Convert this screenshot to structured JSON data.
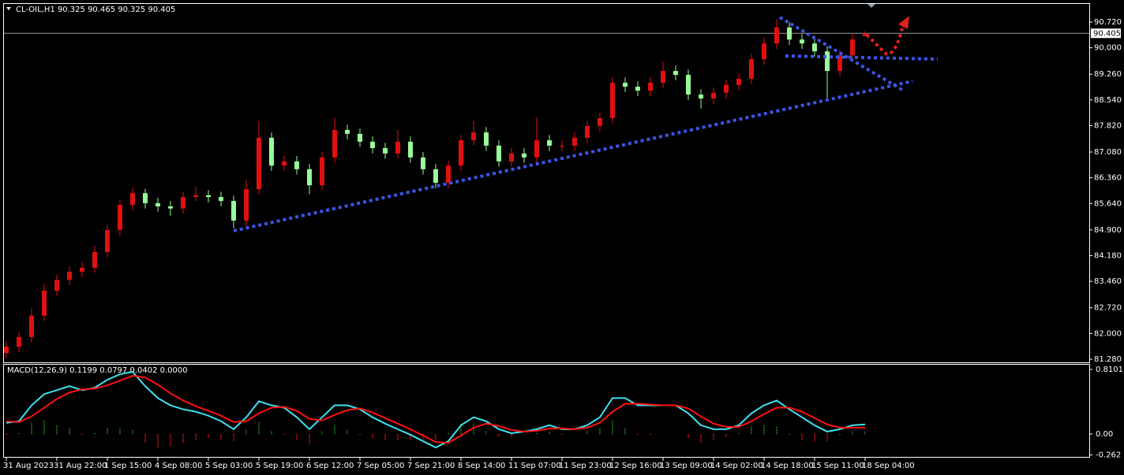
{
  "chart_data": [
    {
      "type": "candlestick",
      "title": "CL-OIL,H1  90.325 90.465 90.325 90.405",
      "up_color": "#e01010",
      "down_color": "#98fb98",
      "open": [
        81.45,
        81.63,
        81.9,
        82.5,
        83.2,
        83.5,
        83.73,
        83.84,
        84.28,
        84.9,
        85.6,
        85.93,
        85.65,
        85.56,
        85.5,
        85.82,
        85.87,
        85.82,
        85.71,
        85.16,
        86.04,
        87.48,
        86.7,
        86.82,
        86.6,
        86.15,
        86.93,
        87.7,
        87.59,
        87.37,
        87.19,
        87.04,
        87.37,
        86.93,
        86.6,
        86.22,
        86.7,
        87.41,
        87.63,
        87.26,
        86.82,
        87.04,
        86.93,
        87.41,
        87.26,
        87.26,
        87.48,
        87.81,
        88.03,
        89.02,
        88.91,
        88.8,
        89.02,
        89.35,
        89.24,
        88.69,
        88.58,
        88.74,
        88.96,
        89.13,
        89.68,
        90.12,
        90.57,
        90.23,
        90.12,
        89.9,
        89.35,
        89.79,
        90.325
      ],
      "high": [
        81.78,
        82.05,
        82.7,
        83.4,
        83.65,
        83.88,
        83.99,
        84.45,
        85.05,
        85.75,
        86.08,
        86.05,
        85.8,
        85.71,
        85.97,
        86.1,
        86.02,
        85.97,
        85.86,
        86.3,
        87.95,
        87.63,
        86.97,
        86.97,
        86.75,
        87.08,
        88.05,
        87.85,
        87.74,
        87.52,
        87.34,
        87.7,
        87.52,
        87.08,
        86.75,
        86.85,
        87.56,
        87.95,
        87.78,
        87.41,
        87.19,
        87.19,
        88.05,
        87.56,
        87.41,
        87.63,
        87.96,
        88.18,
        89.17,
        89.17,
        89.06,
        89.17,
        89.6,
        89.5,
        89.39,
        88.84,
        88.89,
        89.11,
        89.28,
        89.83,
        90.27,
        90.8,
        90.72,
        90.38,
        90.27,
        90.05,
        89.94,
        90.38,
        90.465
      ],
      "low": [
        81.3,
        81.48,
        81.75,
        82.35,
        83.05,
        83.35,
        83.58,
        83.7,
        84.13,
        84.75,
        85.45,
        85.5,
        85.41,
        85.3,
        85.35,
        85.7,
        85.67,
        85.56,
        84.95,
        85.0,
        85.9,
        86.55,
        86.55,
        86.45,
        85.9,
        86.0,
        86.78,
        87.44,
        87.22,
        87.04,
        86.89,
        86.89,
        86.78,
        86.45,
        86.07,
        86.07,
        86.55,
        87.26,
        87.11,
        86.67,
        86.67,
        86.78,
        86.78,
        87.11,
        87.11,
        87.11,
        87.33,
        87.66,
        87.88,
        88.76,
        88.65,
        88.65,
        88.87,
        89.09,
        88.54,
        88.3,
        88.43,
        88.59,
        88.81,
        88.98,
        89.53,
        89.97,
        90.08,
        89.97,
        89.75,
        88.6,
        89.2,
        89.64,
        90.325
      ],
      "close": [
        81.63,
        81.9,
        82.5,
        83.2,
        83.5,
        83.73,
        83.84,
        84.28,
        84.9,
        85.6,
        85.93,
        85.65,
        85.56,
        85.5,
        85.82,
        85.87,
        85.82,
        85.71,
        85.16,
        86.04,
        87.48,
        86.7,
        86.82,
        86.6,
        86.15,
        86.93,
        87.7,
        87.59,
        87.37,
        87.19,
        87.04,
        87.37,
        86.93,
        86.6,
        86.22,
        86.7,
        87.41,
        87.63,
        87.26,
        86.82,
        87.04,
        86.93,
        87.41,
        87.26,
        87.26,
        87.48,
        87.81,
        88.03,
        89.02,
        88.91,
        88.8,
        89.02,
        89.35,
        89.24,
        88.69,
        88.58,
        88.74,
        88.96,
        89.13,
        89.68,
        90.12,
        90.57,
        90.23,
        90.12,
        89.9,
        89.35,
        89.79,
        90.23,
        90.405
      ],
      "xticks": [
        {
          "value": 0,
          "label": "31 Aug 2023"
        },
        {
          "value": 4,
          "label": "31 Aug 22:00"
        },
        {
          "value": 8,
          "label": "1 Sep 15:00"
        },
        {
          "value": 12,
          "label": "4 Sep 08:00"
        },
        {
          "value": 16,
          "label": "5 Sep 03:00"
        },
        {
          "value": 20,
          "label": "5 Sep 19:00"
        },
        {
          "value": 24,
          "label": "6 Sep 12:00"
        },
        {
          "value": 28,
          "label": "7 Sep 05:00"
        },
        {
          "value": 32,
          "label": "7 Sep 21:00"
        },
        {
          "value": 36,
          "label": "8 Sep 14:00"
        },
        {
          "value": 40,
          "label": "11 Sep 07:00"
        },
        {
          "value": 44,
          "label": "11 Sep 23:00"
        },
        {
          "value": 48,
          "label": "12 Sep 16:00"
        },
        {
          "value": 52,
          "label": "13 Sep 09:00"
        },
        {
          "value": 56,
          "label": "14 Sep 02:00"
        },
        {
          "value": 60,
          "label": "14 Sep 18:00"
        },
        {
          "value": 64,
          "label": "15 Sep 11:00"
        },
        {
          "value": 68,
          "label": "18 Sep 04:00"
        }
      ],
      "ylim": [
        81.192,
        91.227
      ],
      "yticks": [
        {
          "value": 90.72,
          "label": "90.720"
        },
        {
          "value": 90.0,
          "label": "90.000"
        },
        {
          "value": 89.26,
          "label": "89.260"
        },
        {
          "value": 88.54,
          "label": "88.540"
        },
        {
          "value": 87.82,
          "label": "87.820"
        },
        {
          "value": 87.08,
          "label": "87.080"
        },
        {
          "value": 86.36,
          "label": "86.360"
        },
        {
          "value": 85.64,
          "label": "85.640"
        },
        {
          "value": 84.9,
          "label": "84.900"
        },
        {
          "value": 84.18,
          "label": "84.180"
        },
        {
          "value": 83.46,
          "label": "83.460"
        },
        {
          "value": 82.72,
          "label": "82.720"
        },
        {
          "value": 82.0,
          "label": "82.000"
        },
        {
          "value": 81.28,
          "label": "81.280"
        }
      ],
      "current_price": {
        "value": 90.405,
        "label": "90.405"
      }
    },
    {
      "type": "macd",
      "title": "MACD(12,26,9) 0.1199 0.0797 0.0402 0.0000",
      "series": [
        {
          "name": "MACD",
          "color": "#40e0f0",
          "values": [
            0.14,
            0.16,
            0.36,
            0.5,
            0.55,
            0.6,
            0.55,
            0.58,
            0.68,
            0.75,
            0.78,
            0.6,
            0.45,
            0.36,
            0.31,
            0.28,
            0.23,
            0.16,
            0.06,
            0.21,
            0.41,
            0.36,
            0.33,
            0.21,
            0.06,
            0.21,
            0.36,
            0.36,
            0.31,
            0.21,
            0.13,
            0.06,
            -0.01,
            -0.09,
            -0.17,
            -0.09,
            0.11,
            0.21,
            0.16,
            0.06,
            0.01,
            0.03,
            0.06,
            0.11,
            0.06,
            0.06,
            0.11,
            0.21,
            0.45,
            0.45,
            0.36,
            0.36,
            0.36,
            0.36,
            0.26,
            0.11,
            0.06,
            0.06,
            0.11,
            0.26,
            0.36,
            0.42,
            0.31,
            0.21,
            0.11,
            0.03,
            0.06,
            0.11,
            0.12
          ]
        },
        {
          "name": "Signal",
          "color": "#ff1010",
          "values": [
            0.16,
            0.15,
            0.22,
            0.33,
            0.44,
            0.52,
            0.56,
            0.57,
            0.61,
            0.67,
            0.73,
            0.71,
            0.62,
            0.51,
            0.42,
            0.35,
            0.29,
            0.23,
            0.15,
            0.16,
            0.26,
            0.33,
            0.34,
            0.29,
            0.19,
            0.17,
            0.24,
            0.3,
            0.32,
            0.27,
            0.2,
            0.13,
            0.06,
            -0.02,
            -0.1,
            -0.11,
            -0.02,
            0.08,
            0.13,
            0.1,
            0.05,
            0.03,
            0.04,
            0.07,
            0.07,
            0.06,
            0.08,
            0.14,
            0.28,
            0.38,
            0.38,
            0.37,
            0.36,
            0.36,
            0.32,
            0.22,
            0.13,
            0.09,
            0.09,
            0.16,
            0.25,
            0.33,
            0.33,
            0.28,
            0.2,
            0.12,
            0.08,
            0.08,
            0.08
          ]
        }
      ],
      "histogram": {
        "up_color": "#1e8c1e",
        "down_color": "#d01010",
        "values": [
          -0.02,
          0.01,
          0.14,
          0.17,
          0.11,
          0.08,
          -0.01,
          0.01,
          0.07,
          0.08,
          0.05,
          -0.11,
          -0.17,
          -0.15,
          -0.11,
          -0.07,
          -0.06,
          -0.07,
          -0.09,
          0.05,
          0.15,
          0.03,
          -0.01,
          -0.08,
          -0.13,
          0.04,
          0.12,
          0.06,
          -0.01,
          -0.06,
          -0.07,
          -0.07,
          -0.07,
          -0.07,
          -0.07,
          0.02,
          0.13,
          0.13,
          0.03,
          -0.04,
          -0.04,
          0,
          0.02,
          0.04,
          -0.01,
          0,
          0.03,
          0.07,
          0.17,
          0.07,
          -0.02,
          -0.01,
          0,
          0,
          -0.06,
          -0.11,
          -0.07,
          -0.03,
          0.02,
          0.1,
          0.11,
          0.09,
          -0.02,
          -0.07,
          -0.09,
          -0.09,
          -0.02,
          0.03,
          0.04
        ]
      },
      "ylim": [
        -0.287,
        0.869
      ],
      "yticks": [
        0.8101,
        {
          "value": 0,
          "label": "0.00"
        },
        -0.262
      ]
    }
  ]
}
